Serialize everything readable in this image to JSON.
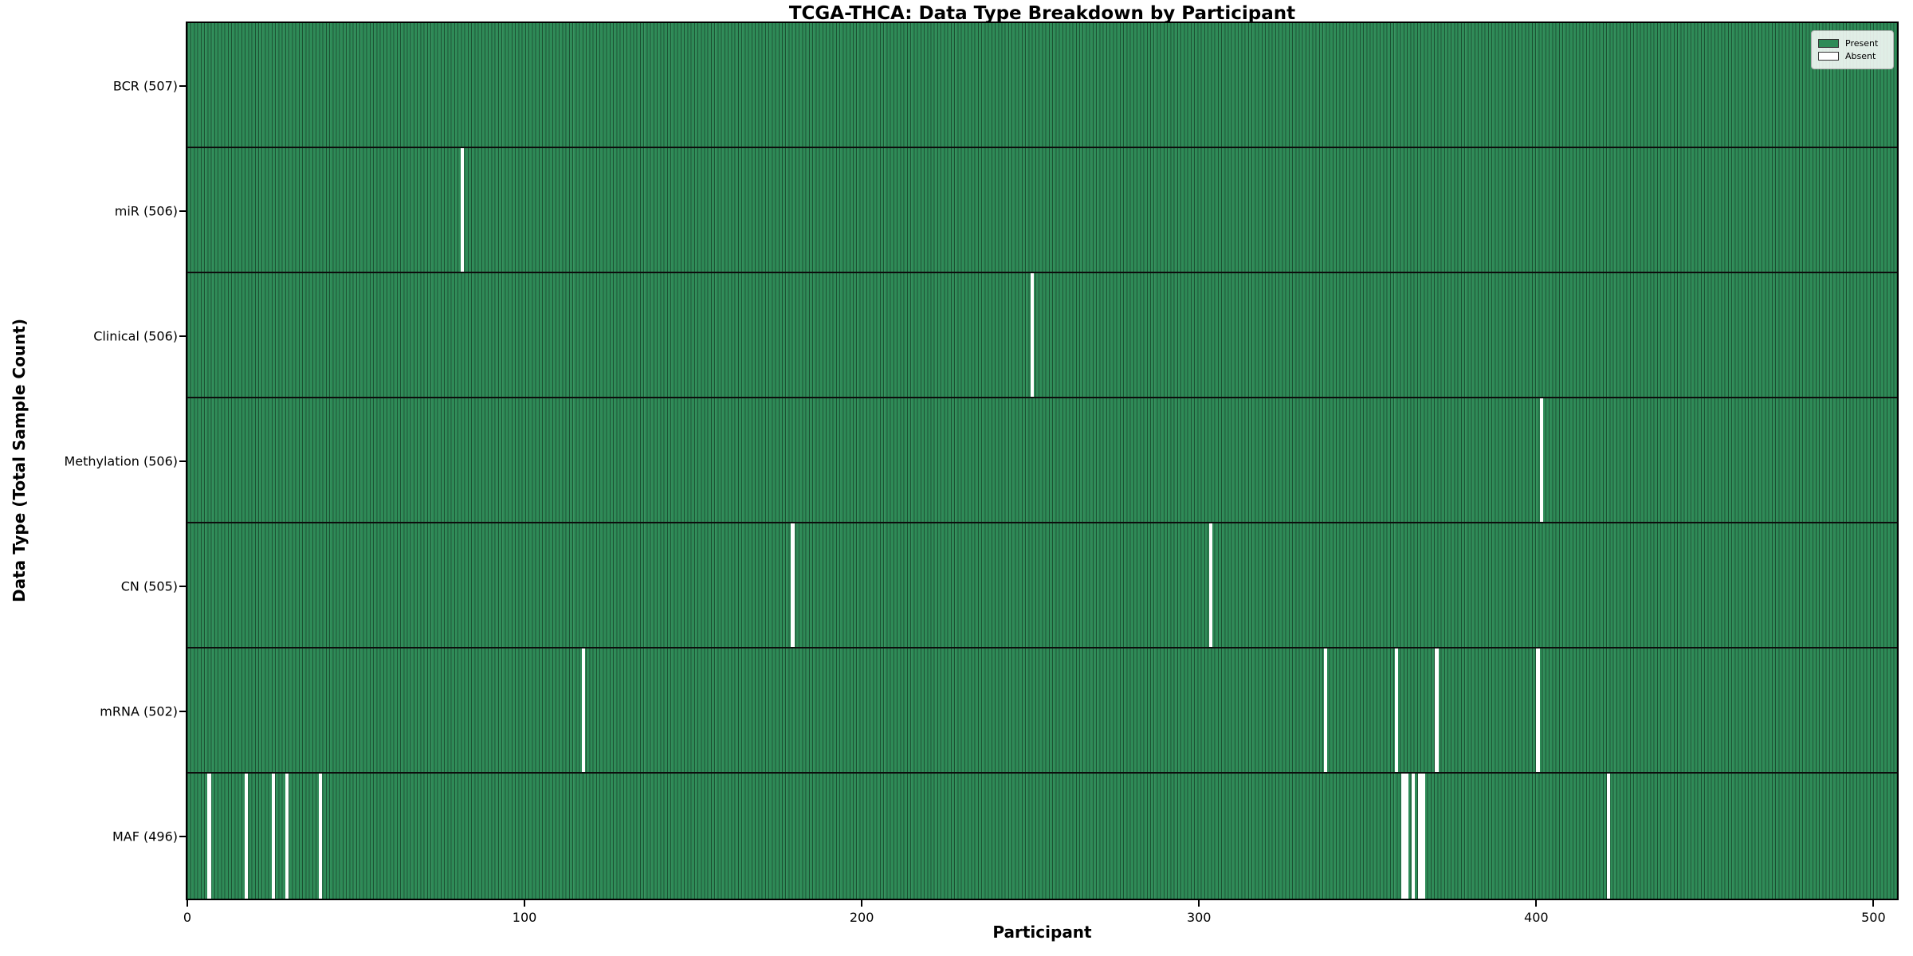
{
  "figure": {
    "title": "TCGA-THCA: Data Type Breakdown by Participant",
    "xlabel": "Participant",
    "ylabel": "Data Type (Total Sample Count)",
    "legend": {
      "present_label": "Present",
      "absent_label": "Absent"
    },
    "colors": {
      "present": "#2e8b57",
      "absent": "#ffffff",
      "cell_edge": "#1b5434",
      "row_divider": "#0d0d0d",
      "plot_border": "#000000"
    }
  },
  "chart_data": {
    "type": "heatmap",
    "title": "TCGA-THCA: Data Type Breakdown by Participant",
    "xlabel": "Participant",
    "ylabel": "Data Type (Total Sample Count)",
    "legend_entries": [
      "Present",
      "Absent"
    ],
    "legend_position": "upper right",
    "grid": false,
    "n_participants": 507,
    "xlim": [
      0,
      507
    ],
    "x_ticks": [
      0,
      100,
      200,
      300,
      400,
      500
    ],
    "rows": [
      {
        "data_type": "BCR",
        "label": "BCR (507)",
        "total_samples": 507,
        "absent_participants": []
      },
      {
        "data_type": "miR",
        "label": "miR (506)",
        "total_samples": 506,
        "absent_participants": [
          81
        ]
      },
      {
        "data_type": "Clinical",
        "label": "Clinical (506)",
        "total_samples": 506,
        "absent_participants": [
          250
        ]
      },
      {
        "data_type": "Methylation",
        "label": "Methylation (506)",
        "total_samples": 506,
        "absent_participants": [
          401
        ]
      },
      {
        "data_type": "CN",
        "label": "CN (505)",
        "total_samples": 505,
        "absent_participants": [
          179,
          303
        ]
      },
      {
        "data_type": "mRNA",
        "label": "mRNA (502)",
        "total_samples": 502,
        "absent_participants": [
          117,
          337,
          358,
          370,
          400
        ]
      },
      {
        "data_type": "MAF",
        "label": "MAF (496)",
        "total_samples": 496,
        "absent_participants": [
          6,
          17,
          25,
          29,
          39,
          360,
          361,
          363,
          365,
          366,
          421
        ]
      }
    ]
  }
}
